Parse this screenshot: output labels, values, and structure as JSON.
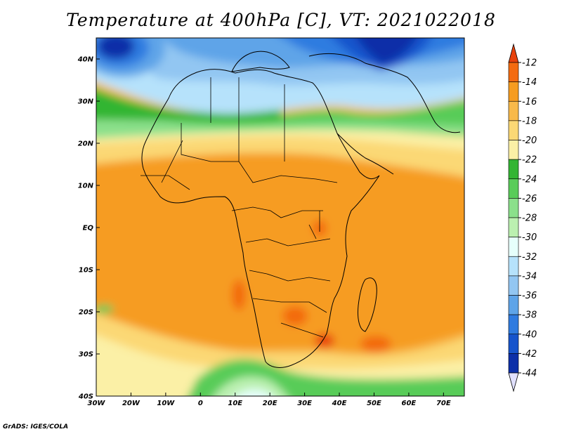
{
  "title": "Temperature at 400hPa [C], VT: 2021022018",
  "footer": "GrADS: IGES/COLA",
  "map": {
    "lon_range": [
      -30,
      76
    ],
    "lat_range": [
      -40,
      45
    ],
    "lon_ticks": [
      {
        "value": -30,
        "label": "30W"
      },
      {
        "value": -20,
        "label": "20W"
      },
      {
        "value": -10,
        "label": "10W"
      },
      {
        "value": 0,
        "label": "0"
      },
      {
        "value": 10,
        "label": "10E"
      },
      {
        "value": 20,
        "label": "20E"
      },
      {
        "value": 30,
        "label": "30E"
      },
      {
        "value": 40,
        "label": "40E"
      },
      {
        "value": 50,
        "label": "50E"
      },
      {
        "value": 60,
        "label": "60E"
      },
      {
        "value": 70,
        "label": "70E"
      }
    ],
    "lat_ticks": [
      {
        "value": 40,
        "label": "40N"
      },
      {
        "value": 30,
        "label": "30N"
      },
      {
        "value": 20,
        "label": "20N"
      },
      {
        "value": 10,
        "label": "10N"
      },
      {
        "value": 0,
        "label": "EQ"
      },
      {
        "value": -10,
        "label": "10S"
      },
      {
        "value": -20,
        "label": "20S"
      },
      {
        "value": -30,
        "label": "30S"
      },
      {
        "value": -40,
        "label": "40S"
      }
    ]
  },
  "colorbar": {
    "labels": [
      "-12",
      "-14",
      "-16",
      "-18",
      "-20",
      "-22",
      "-24",
      "-26",
      "-28",
      "-30",
      "-32",
      "-34",
      "-36",
      "-38",
      "-40",
      "-42",
      "-44"
    ],
    "colors": [
      "#e8420c",
      "#f36b10",
      "#f69c20",
      "#f8b94a",
      "#fbd875",
      "#fbf0a6",
      "#33b533",
      "#59cc59",
      "#8be08b",
      "#bbf0b0",
      "#e6fffb",
      "#b6e2fb",
      "#92c6f2",
      "#5ea4e8",
      "#2f7be0",
      "#1654cc",
      "#0c2fa8",
      "#061a72"
    ],
    "top_arrow_color": "#e8420c",
    "bottom_arrow_color": "#e0e0ff"
  }
}
